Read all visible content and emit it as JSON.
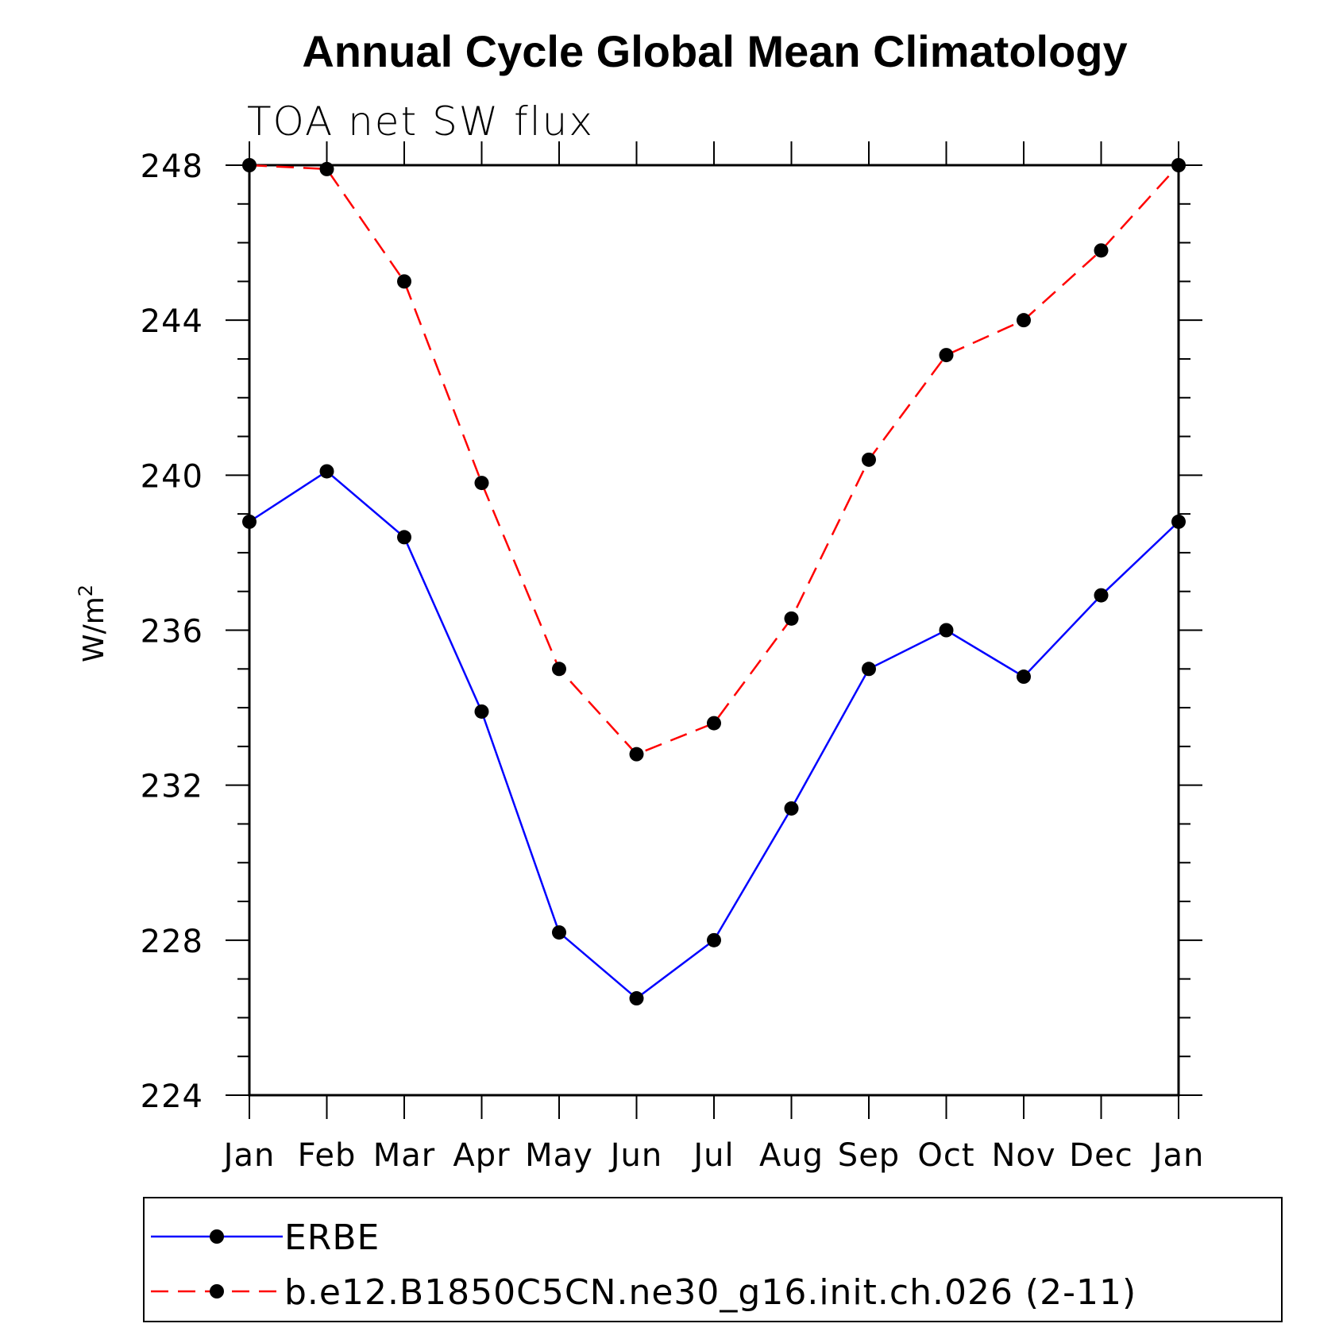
{
  "chart_data": {
    "type": "line",
    "title": "Annual Cycle Global Mean Climatology",
    "subtitle": "TOA net SW flux",
    "ylabel": "W/m",
    "ylabel_superscript": "2",
    "ylim": [
      224,
      248
    ],
    "yticks": [
      "248",
      "244",
      "240",
      "236",
      "232",
      "228",
      "224"
    ],
    "ytick_values": [
      248,
      244,
      240,
      236,
      232,
      228,
      224
    ],
    "categories": [
      "Jan",
      "Feb",
      "Mar",
      "Apr",
      "May",
      "Jun",
      "Jul",
      "Aug",
      "Sep",
      "Oct",
      "Nov",
      "Dec",
      "Jan"
    ],
    "series": [
      {
        "name": "ERBE",
        "color": "#0000ff",
        "dash": "solid",
        "values": [
          238.8,
          240.1,
          238.4,
          233.9,
          228.2,
          226.5,
          228.0,
          231.4,
          235.0,
          236.0,
          234.8,
          236.9,
          238.8
        ]
      },
      {
        "name": "b.e12.B1850C5CN.ne30_g16.init.ch.026 (2-11)",
        "color": "#ff0000",
        "dash": "dashed",
        "values": [
          248.0,
          247.9,
          245.0,
          239.8,
          235.0,
          232.8,
          233.6,
          236.3,
          240.4,
          243.1,
          244.0,
          245.8,
          248.0
        ]
      }
    ],
    "legend_position": "bottom"
  }
}
